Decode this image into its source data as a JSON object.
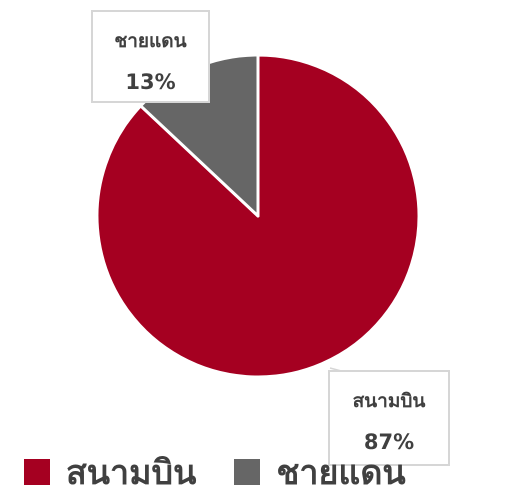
{
  "chart_data": {
    "type": "pie",
    "title": "",
    "slices": [
      {
        "label": "สนามบิน",
        "value": 87,
        "display": "87%",
        "color": "#a50021"
      },
      {
        "label": "ชายแดน",
        "value": 13,
        "display": "13%",
        "color": "#666666"
      }
    ],
    "legend": "bottom",
    "start_angle": "12-o-clock",
    "direction": "clockwise"
  }
}
